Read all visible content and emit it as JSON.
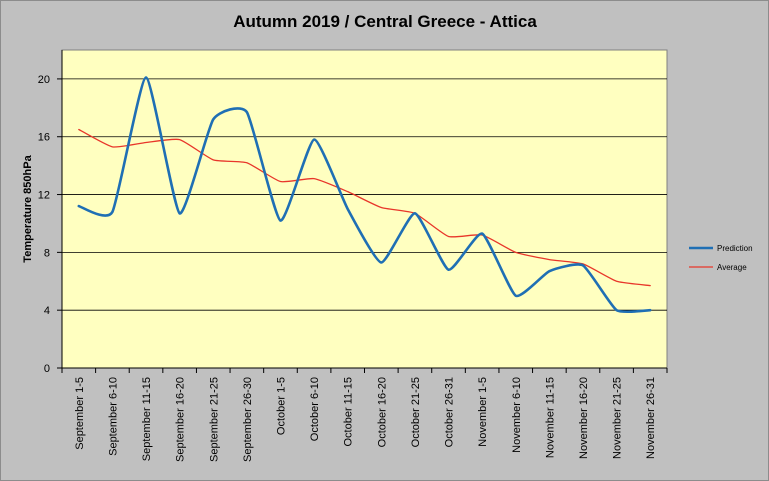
{
  "chart_data": {
    "type": "line",
    "title": "Autumn 2019 / Central Greece - Attica",
    "xlabel": "",
    "ylabel": "Temperature 850hPa",
    "ylim": [
      0,
      22
    ],
    "yticks": [
      0,
      4,
      8,
      12,
      16,
      20
    ],
    "grid": true,
    "legend_position": "right",
    "categories": [
      "September 1-5",
      "September 6-10",
      "September 11-15",
      "September 16-20",
      "September 21-25",
      "September 26-30",
      "October 1-5",
      "October 6-10",
      "October 11-15",
      "October 16-20",
      "October 21-25",
      "October 26-31",
      "November 1-5",
      "November 6-10",
      "November 11-15",
      "November 16-20",
      "November 21-25",
      "November 26-31"
    ],
    "series": [
      {
        "name": "Prediction",
        "color": "#1f6fb4",
        "values": [
          11.2,
          10.8,
          20.1,
          10.7,
          17.2,
          17.7,
          10.2,
          15.8,
          11.0,
          7.3,
          10.7,
          6.8,
          9.3,
          5.0,
          6.7,
          7.1,
          4.0,
          4.0
        ]
      },
      {
        "name": "Average",
        "color": "#e8362a",
        "values": [
          16.5,
          15.3,
          15.6,
          15.8,
          14.4,
          14.2,
          12.9,
          13.1,
          12.2,
          11.1,
          10.7,
          9.1,
          9.2,
          8.0,
          7.5,
          7.2,
          6.0,
          5.7
        ]
      }
    ],
    "colors": {
      "plot_background": "#ffffc0",
      "chart_background": "#c0c0c0",
      "gridline": "#000000"
    }
  }
}
